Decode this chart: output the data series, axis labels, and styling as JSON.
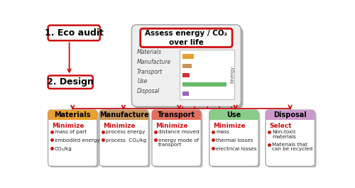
{
  "eco_audit_label": "1. Eco audit",
  "design_label": "2. Design",
  "assess_line1": "Assess energy / CO₂",
  "assess_line2": "over life",
  "bar_categories": [
    "Materials",
    "Manufacture",
    "Transport",
    "Use",
    "Disposal"
  ],
  "bar_values": [
    0.22,
    0.18,
    0.14,
    0.85,
    0.12
  ],
  "bar_colors": [
    "#E8A030",
    "#C8965A",
    "#CC3333",
    "#66BB66",
    "#9966BB"
  ],
  "energy_label": "Energy",
  "boxes": [
    {
      "title": "Materials",
      "title_bg": "#E8A030",
      "header": "Minimize",
      "bullets": [
        "mass of part",
        "embodied energy",
        "CO₂/kg"
      ]
    },
    {
      "title": "Manufacture",
      "title_bg": "#C8965A",
      "header": "Minimize",
      "bullets": [
        "process energy",
        "process  CO₂/kg"
      ]
    },
    {
      "title": "Transport",
      "title_bg": "#E07060",
      "header": "Minimize",
      "bullets": [
        "distance moved",
        "energy mode of\ntransport"
      ]
    },
    {
      "title": "Use",
      "title_bg": "#88CC88",
      "header": "Minimize",
      "bullets": [
        "mass",
        "thermal losses",
        "electrical losses"
      ]
    },
    {
      "title": "Disposal",
      "title_bg": "#CC99CC",
      "header": "Select",
      "bullets": [
        "Non-toxic\nmaterials",
        "Materials that\ncan be recycled"
      ]
    }
  ],
  "red": "#CC1111",
  "gray_border": "#999999",
  "shadow_color": "#AAAAAA",
  "white": "#FFFFFF",
  "light_gray_bg": "#EEEEEE"
}
